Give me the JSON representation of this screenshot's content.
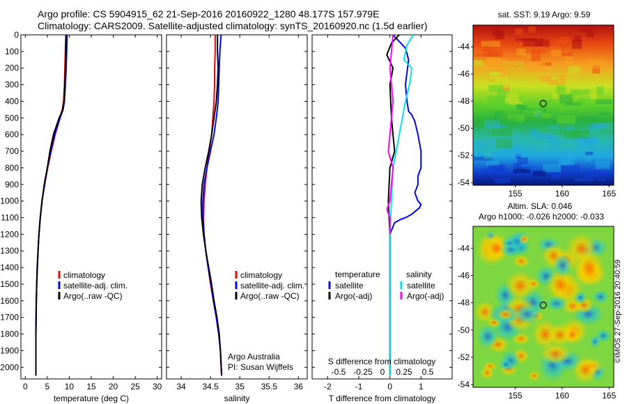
{
  "header": {
    "line1": "Argo profile: CS 5904915_62 21-Sep-2016 20160922_1280 48.177S 157.979E",
    "line2": "Climatology: CARS2009. Satellite-adjusted climatology: synTS_20160920.nc (1.5d earlier)"
  },
  "colors": {
    "climatology": "#ff0000",
    "satellite": "#0000ff",
    "argo": "#000000",
    "cyan": "#00e5ee",
    "magenta": "#ff00ff"
  },
  "chart_data": [
    {
      "type": "line",
      "ylabel": "",
      "ylim": [
        2070,
        0
      ],
      "y_ticks": [
        0,
        100,
        200,
        300,
        400,
        500,
        600,
        700,
        800,
        900,
        1000,
        1100,
        1200,
        1300,
        1400,
        1500,
        1600,
        1700,
        1800,
        1900,
        2000
      ],
      "xlim": [
        -1,
        31
      ],
      "x_ticks": [
        0,
        5,
        10,
        15,
        20,
        25,
        30
      ],
      "xlabel": "temperature (deg C)",
      "legend": [
        "climatology",
        "satellite-adj. clim.",
        "Argo(..raw -QC)"
      ],
      "series": [
        {
          "name": "climatology",
          "color": "#ff0000",
          "x": [
            9.2,
            9.1,
            9.0,
            8.9,
            8.7,
            8.4,
            7.9,
            6.8,
            5.9,
            5.1,
            4.4,
            3.8,
            3.4,
            3.1,
            2.9,
            2.7,
            2.6,
            2.5,
            2.45,
            2.4,
            2.4
          ],
          "y": [
            0,
            100,
            200,
            300,
            400,
            450,
            500,
            600,
            700,
            800,
            900,
            1000,
            1100,
            1200,
            1300,
            1400,
            1500,
            1600,
            1700,
            1800,
            2050
          ]
        },
        {
          "name": "satellite-adj. clim.",
          "color": "#0000ff",
          "x": [
            9.5,
            9.4,
            9.3,
            9.1,
            8.9,
            8.6,
            7.9,
            6.7,
            5.8,
            5.0,
            4.4,
            3.8,
            3.4,
            3.1,
            2.9,
            2.75,
            2.6,
            2.5,
            2.45,
            2.4,
            2.4
          ],
          "y": [
            0,
            100,
            200,
            300,
            400,
            450,
            500,
            600,
            700,
            800,
            900,
            1000,
            1100,
            1200,
            1300,
            1400,
            1500,
            1600,
            1700,
            1800,
            2050
          ]
        },
        {
          "name": "Argo(..raw -QC)",
          "color": "#000000",
          "x": [
            9.3,
            9.2,
            9.1,
            9.0,
            8.8,
            8.5,
            7.7,
            6.4,
            5.6,
            5.0,
            4.3,
            3.8,
            3.4,
            3.1,
            2.9,
            2.7,
            2.6,
            2.5,
            2.45,
            2.4,
            2.4
          ],
          "y": [
            0,
            100,
            200,
            300,
            400,
            450,
            500,
            600,
            700,
            800,
            900,
            1000,
            1100,
            1200,
            1300,
            1400,
            1500,
            1600,
            1700,
            1800,
            2050
          ]
        }
      ]
    },
    {
      "type": "line",
      "ylim": [
        2070,
        0
      ],
      "xlim": [
        33.75,
        36.15
      ],
      "x_ticks": [
        34,
        34.5,
        35,
        35.5,
        36
      ],
      "x_tick_labels": [
        "34",
        "34.5",
        "35",
        "35.5",
        "36"
      ],
      "xlabel": "salinity",
      "legend": [
        "climatology",
        "satellite-adj. clim.",
        "Argo(..raw -QC)"
      ],
      "annotation": [
        "Argo Australia",
        "PI: Susan Wijffels"
      ],
      "series": [
        {
          "name": "climatology",
          "color": "#ff0000",
          "x": [
            34.58,
            34.58,
            34.57,
            34.57,
            34.56,
            34.54,
            34.52,
            34.48,
            34.44,
            34.41,
            34.39,
            34.38,
            34.39,
            34.42,
            34.46,
            34.5,
            34.55,
            34.6,
            34.64,
            34.67,
            34.69
          ],
          "y": [
            0,
            100,
            200,
            300,
            400,
            500,
            600,
            700,
            800,
            900,
            1000,
            1100,
            1200,
            1300,
            1400,
            1500,
            1600,
            1700,
            1800,
            1900,
            2050
          ]
        },
        {
          "name": "satellite-adj. clim.",
          "color": "#0000ff",
          "x": [
            34.68,
            34.66,
            34.65,
            34.64,
            34.63,
            34.6,
            34.56,
            34.5,
            34.44,
            34.39,
            34.37,
            34.37,
            34.39,
            34.42,
            34.46,
            34.51,
            34.55,
            34.6,
            34.64,
            34.67,
            34.69
          ],
          "y": [
            0,
            100,
            200,
            300,
            400,
            500,
            600,
            700,
            800,
            900,
            1000,
            1100,
            1200,
            1300,
            1400,
            1500,
            1600,
            1700,
            1800,
            1900,
            2050
          ]
        },
        {
          "name": "Argo(..raw -QC)",
          "color": "#000000",
          "x": [
            34.62,
            34.62,
            34.63,
            34.62,
            34.6,
            34.56,
            34.52,
            34.47,
            34.41,
            34.36,
            34.34,
            34.35,
            34.38,
            34.42,
            34.47,
            34.52,
            34.56,
            34.61,
            34.65,
            34.67,
            34.69
          ],
          "y": [
            0,
            100,
            200,
            300,
            400,
            500,
            600,
            700,
            800,
            900,
            1000,
            1100,
            1200,
            1300,
            1400,
            1500,
            1600,
            1700,
            1800,
            1900,
            2050
          ]
        }
      ]
    },
    {
      "type": "line",
      "ylim": [
        2070,
        0
      ],
      "xlim": [
        -2.5,
        2
      ],
      "x_ticks": [
        -2,
        -1,
        0,
        1
      ],
      "xlabel": "T difference from climatology",
      "top_xlabel": "S difference from climatology",
      "top_ticks": [
        "-0.5",
        "-0.25",
        "0",
        "0.25",
        "0.5"
      ],
      "legend_left_title": "temperature",
      "legend_right_title": "salinity",
      "legend": [
        "satellite",
        "Argo(-adj)",
        "satellite",
        "Argo(-adj)"
      ],
      "series": [
        {
          "name": "satellite",
          "color": "#0000ff",
          "x": [
            0.1,
            0.2,
            0.5,
            0.6,
            0.5,
            0.55,
            0.6,
            0.7,
            0.8,
            0.9,
            1.0,
            1.0,
            0.9,
            0.9,
            0.8,
            0.9,
            1.0,
            0.95,
            0.7,
            0.5,
            0.35,
            0.15,
            0.0,
            0.0
          ],
          "y": [
            0,
            20,
            80,
            150,
            300,
            400,
            460,
            480,
            520,
            600,
            700,
            800,
            850,
            900,
            950,
            1000,
            1020,
            1040,
            1080,
            1100,
            1110,
            1130,
            1200,
            2050
          ]
        },
        {
          "name": "Argo(-adj)",
          "color": "#000000",
          "x": [
            0.3,
            0.05,
            -0.1,
            0.1,
            0.0,
            0.05,
            0.1,
            0.15,
            0.0,
            -0.05,
            0.0,
            0.0,
            0.0,
            0.0
          ],
          "y": [
            0,
            50,
            120,
            200,
            300,
            500,
            600,
            700,
            800,
            1000,
            1200,
            1500,
            1800,
            2050
          ]
        },
        {
          "name": "satellite",
          "color": "#00e5ee",
          "x": [
            0.75,
            0.55,
            0.45,
            0.7,
            0.65,
            0.5,
            0.3,
            0.1,
            0.05,
            0.0,
            0.0,
            0.0,
            0.0,
            0.0
          ],
          "y": [
            0,
            60,
            150,
            200,
            280,
            400,
            600,
            800,
            1000,
            1200,
            1400,
            1600,
            1800,
            2050
          ]
        },
        {
          "name": "Argo(-adj)",
          "color": "#ff00ff",
          "x": [
            0.1,
            0.0,
            0.1,
            0.0,
            -0.05,
            0.1,
            0.05,
            0.0,
            -0.1,
            0.0,
            0.0
          ],
          "y": [
            0,
            200,
            400,
            600,
            700,
            800,
            900,
            1000,
            1050,
            1100,
            1200
          ]
        }
      ]
    },
    {
      "type": "heatmap",
      "title": "sat. SST: 9.19  Argo: 9.59",
      "xlim": [
        150.5,
        165.5
      ],
      "ylim": [
        -54.2,
        -42.4
      ],
      "x_ticks": [
        155,
        160,
        165
      ],
      "y_ticks": [
        -44,
        -46,
        -48,
        -50,
        -52,
        -54
      ],
      "marker": {
        "lon": 157.979,
        "lat": -48.177
      }
    },
    {
      "type": "heatmap",
      "title": "Altim. SLA: 0.046",
      "subtitle": "Argo h1000: -0.026  h2000: -0.033",
      "xlim": [
        150.5,
        165.5
      ],
      "ylim": [
        -54.2,
        -42.4
      ],
      "x_ticks": [
        155,
        160,
        165
      ],
      "y_ticks": [
        -44,
        -46,
        -48,
        -50,
        -52,
        -54
      ],
      "marker": {
        "lon": 157.979,
        "lat": -48.177
      }
    }
  ],
  "footer": {
    "stamp": "©IMOS 27-Sep-2016 20:40:59"
  }
}
